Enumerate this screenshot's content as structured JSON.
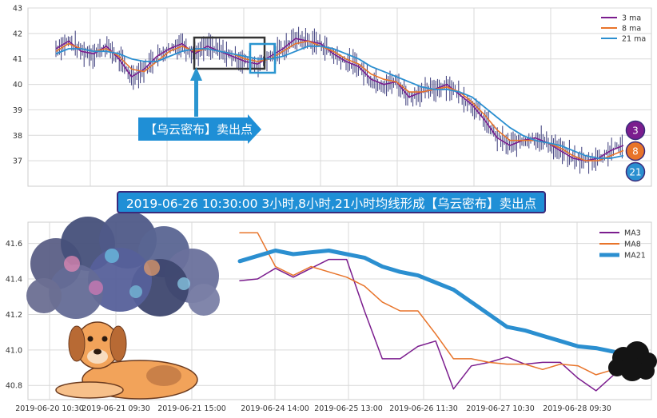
{
  "banner": "2019-06-26 10:30:00 3小时,8小时,21小时均线形成【乌云密布】卖出点",
  "arrow_label": "【乌云密布】卖出点",
  "colors": {
    "ma3": "#7b1d8e",
    "ma8": "#e8742a",
    "ma21": "#2b8fd0",
    "grid": "#d9d9d9",
    "candle": "#3a3a7a",
    "box_black": "#333333",
    "box_blue": "#2a95d0"
  },
  "badges": [
    "3",
    "8",
    "21"
  ],
  "chart_data": [
    {
      "type": "line",
      "ylim": [
        36,
        43
      ],
      "yticks": [
        "37",
        "38",
        "39",
        "40",
        "41",
        "42",
        "43"
      ],
      "legend": [
        "3 ma",
        "8 ma",
        "21 ma"
      ],
      "legend_position": "top-right",
      "grid": true,
      "series": [
        {
          "name": "3 ma",
          "values": [
            41.4,
            41.7,
            41.3,
            41.2,
            41.5,
            41.0,
            40.3,
            40.6,
            41.1,
            41.4,
            41.6,
            41.2,
            41.5,
            41.3,
            41.1,
            40.9,
            40.8,
            41.1,
            41.4,
            41.8,
            41.7,
            41.6,
            41.2,
            40.9,
            40.7,
            40.2,
            40.0,
            40.1,
            39.5,
            39.7,
            39.8,
            40.0,
            39.6,
            39.2,
            38.6,
            37.9,
            37.6,
            37.8,
            37.9,
            37.7,
            37.4,
            37.1,
            37.0,
            37.1,
            37.4,
            37.6
          ]
        },
        {
          "name": "8 ma",
          "values": [
            41.3,
            41.6,
            41.4,
            41.3,
            41.4,
            41.1,
            40.6,
            40.5,
            40.9,
            41.3,
            41.5,
            41.3,
            41.4,
            41.3,
            41.2,
            41.0,
            40.9,
            41.0,
            41.3,
            41.6,
            41.7,
            41.5,
            41.3,
            41.0,
            40.8,
            40.4,
            40.2,
            40.1,
            39.7,
            39.7,
            39.8,
            39.9,
            39.7,
            39.3,
            38.8,
            38.2,
            37.8,
            37.8,
            37.8,
            37.7,
            37.5,
            37.2,
            37.0,
            37.0,
            37.2,
            37.4
          ]
        },
        {
          "name": "21 ma",
          "values": [
            41.2,
            41.4,
            41.4,
            41.3,
            41.3,
            41.2,
            41.0,
            40.9,
            40.9,
            41.1,
            41.3,
            41.4,
            41.4,
            41.3,
            41.2,
            41.1,
            41.0,
            41.0,
            41.1,
            41.3,
            41.5,
            41.5,
            41.4,
            41.2,
            41.0,
            40.7,
            40.5,
            40.3,
            40.1,
            39.9,
            39.8,
            39.8,
            39.7,
            39.5,
            39.1,
            38.7,
            38.3,
            38.0,
            37.8,
            37.7,
            37.6,
            37.4,
            37.2,
            37.1,
            37.1,
            37.2
          ]
        }
      ]
    },
    {
      "type": "line",
      "ylim": [
        40.72,
        41.72
      ],
      "yticks": [
        "40.8",
        "41.0",
        "41.2",
        "41.4",
        "41.6"
      ],
      "xticks": [
        "2019-06-20 10:30",
        "2019-06-21 09:30",
        "2019-06-21 15:00",
        "2019-06-24 14:00",
        "2019-06-25 13:00",
        "2019-06-26 11:30",
        "2019-06-27 10:30",
        "2019-06-28 09:30"
      ],
      "legend": [
        "MA3",
        "MA8",
        "MA21"
      ],
      "legend_position": "top-right",
      "grid": true,
      "series": [
        {
          "name": "MA3",
          "values": [
            41.39,
            41.4,
            41.46,
            41.41,
            41.46,
            41.51,
            41.51,
            41.22,
            40.95,
            40.95,
            41.02,
            41.05,
            40.78,
            40.91,
            40.93,
            40.96,
            40.92,
            40.93,
            40.93,
            40.84,
            40.77,
            40.86
          ]
        },
        {
          "name": "MA8",
          "values": [
            41.66,
            41.66,
            41.47,
            41.42,
            41.47,
            41.44,
            41.41,
            41.36,
            41.27,
            41.22,
            41.22,
            41.09,
            40.95,
            40.95,
            40.93,
            40.92,
            40.92,
            40.89,
            40.92,
            40.91,
            40.86,
            40.89
          ]
        },
        {
          "name": "MA21",
          "values": [
            41.5,
            41.53,
            41.56,
            41.54,
            41.55,
            41.56,
            41.54,
            41.52,
            41.47,
            41.44,
            41.42,
            41.38,
            41.34,
            41.27,
            41.2,
            41.13,
            41.11,
            41.08,
            41.05,
            41.02,
            41.01,
            40.99
          ]
        }
      ]
    }
  ]
}
